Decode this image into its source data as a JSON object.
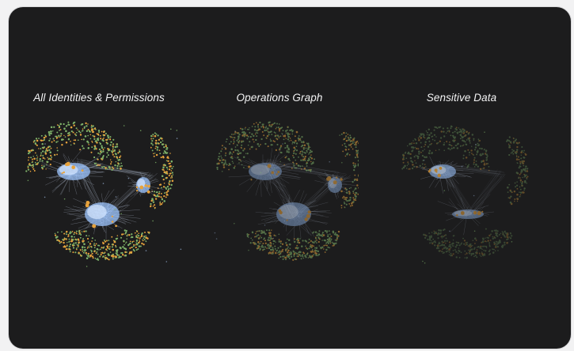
{
  "panels": [
    {
      "id": "all-identities",
      "title": "All Identities & Permissions"
    },
    {
      "id": "operations",
      "title": "Operations Graph"
    },
    {
      "id": "sensitive",
      "title": "Sensitive Data"
    }
  ],
  "colors": {
    "background": "#1c1c1d",
    "hub": "#9ec6ff",
    "node_green": "#7fb36a",
    "node_orange": "#e6a23c",
    "edge": "#c9d6ee"
  }
}
